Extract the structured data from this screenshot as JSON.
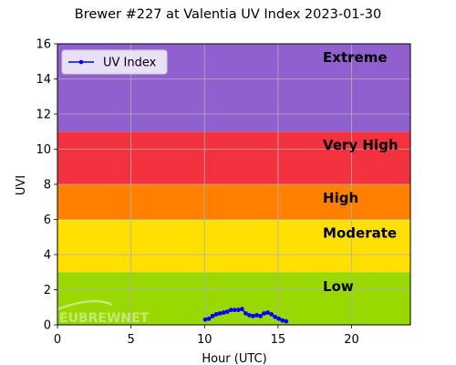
{
  "chart_data": {
    "type": "scatter",
    "title": "Brewer #227 at Valentia UV Index 2023-01-30",
    "xlabel": "Hour (UTC)",
    "ylabel": "UVI",
    "xlim": [
      0,
      24
    ],
    "ylim": [
      0,
      16
    ],
    "xticks": [
      "0",
      "5",
      "10",
      "15",
      "20"
    ],
    "yticks": [
      "0",
      "2",
      "4",
      "6",
      "8",
      "10",
      "12",
      "14",
      "16"
    ],
    "grid": true,
    "legend_position": "top-left",
    "bands": [
      {
        "label": "Low",
        "from": 0,
        "to": 3,
        "color": "#99d800"
      },
      {
        "label": "Moderate",
        "from": 3,
        "to": 6,
        "color": "#ffe000"
      },
      {
        "label": "High",
        "from": 6,
        "to": 8,
        "color": "#ff8000"
      },
      {
        "label": "Very High",
        "from": 8,
        "to": 11,
        "color": "#f2333f"
      },
      {
        "label": "Extreme",
        "from": 11,
        "to": 16,
        "color": "#9060cf"
      }
    ],
    "series": [
      {
        "name": "UV Index",
        "color": "#0000ff",
        "x": [
          10.05,
          10.3,
          10.55,
          10.8,
          11.05,
          11.3,
          11.55,
          11.8,
          12.05,
          12.3,
          12.55,
          12.8,
          13.05,
          13.3,
          13.55,
          13.8,
          14.05,
          14.3,
          14.55,
          14.8,
          15.05,
          15.3,
          15.55
        ],
        "y": [
          0.3,
          0.35,
          0.5,
          0.6,
          0.65,
          0.7,
          0.75,
          0.85,
          0.85,
          0.85,
          0.9,
          0.65,
          0.55,
          0.5,
          0.55,
          0.5,
          0.65,
          0.7,
          0.6,
          0.45,
          0.35,
          0.25,
          0.2
        ]
      }
    ],
    "watermark": "EUBREWNET"
  }
}
